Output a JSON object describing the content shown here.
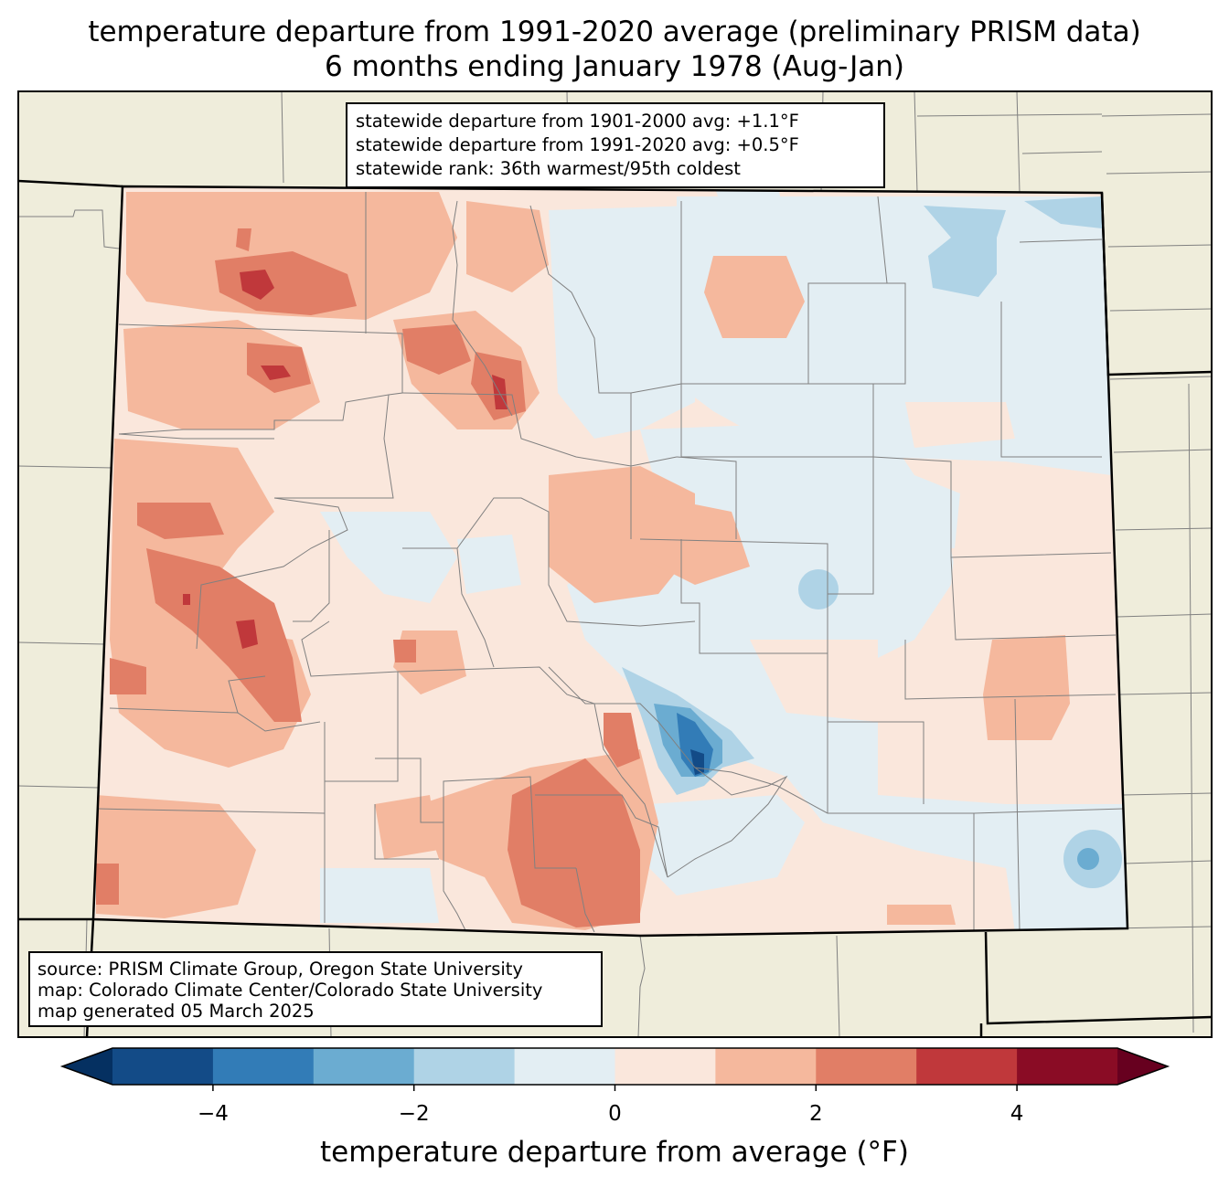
{
  "title": {
    "line1": "temperature departure from 1991-2020 average (preliminary PRISM data)",
    "line2": "6 months ending January 1978 (Aug-Jan)"
  },
  "stats_box": {
    "line1": "statewide departure from 1901-2000 avg: +1.1°F",
    "line2": "statewide departure from 1991-2020 avg: +0.5°F",
    "line3": "statewide rank: 36th warmest/95th coldest"
  },
  "source_box": {
    "line1": "source: PRISM Climate Group, Oregon State University",
    "line2": "map: Colorado Climate Center/Colorado State University",
    "line3": "map generated 05 March 2025"
  },
  "colorbar": {
    "label": "temperature departure from average (°F)",
    "range": [
      -5,
      5
    ],
    "bins": [
      {
        "from": -5,
        "to": -4,
        "color": "#134b87"
      },
      {
        "from": -4,
        "to": -3,
        "color": "#327cb7"
      },
      {
        "from": -3,
        "to": -2,
        "color": "#6bacd1"
      },
      {
        "from": -2,
        "to": -1,
        "color": "#afd3e6"
      },
      {
        "from": -1,
        "to": 0,
        "color": "#e3eef3"
      },
      {
        "from": 0,
        "to": 1,
        "color": "#fae7dc"
      },
      {
        "from": 1,
        "to": 2,
        "color": "#f5b89d"
      },
      {
        "from": 2,
        "to": 3,
        "color": "#e17e66"
      },
      {
        "from": 3,
        "to": 4,
        "color": "#c0383b"
      },
      {
        "from": 4,
        "to": 5,
        "color": "#8a0c25"
      }
    ],
    "under_color": "#053061",
    "over_color": "#67001f",
    "ticks": [
      {
        "value": -4,
        "label": "−4"
      },
      {
        "value": -2,
        "label": "−2"
      },
      {
        "value": 0,
        "label": "0"
      },
      {
        "value": 2,
        "label": "2"
      },
      {
        "value": 4,
        "label": "4"
      }
    ]
  },
  "colors": {
    "land": "#efeddb",
    "state_border": "#000000",
    "county_border": "#808080"
  }
}
